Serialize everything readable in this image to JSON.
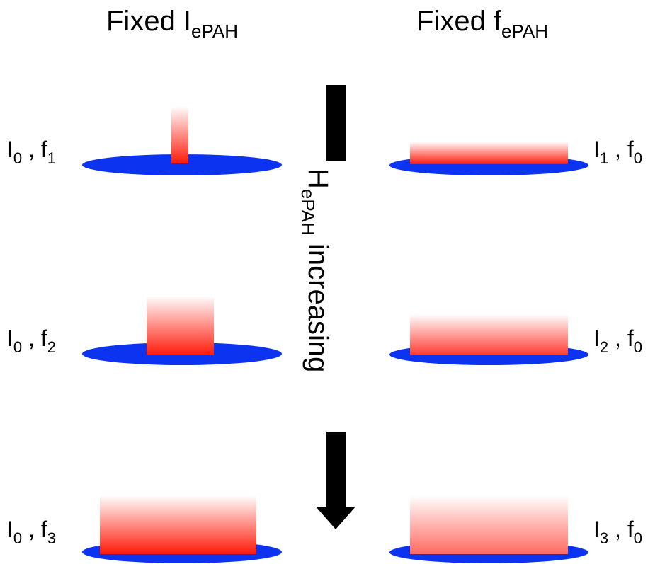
{
  "titles": {
    "left": {
      "main": "Fixed I",
      "sub": "ePAH"
    },
    "right": {
      "main": "Fixed f",
      "sub": "ePAH"
    }
  },
  "axis": {
    "main": "H",
    "sub": "ePAH",
    "rest": " increasing"
  },
  "left_rows": [
    {
      "i": "I",
      "i_sub": "0",
      "sep": " , ",
      "f": "f",
      "f_sub": "1"
    },
    {
      "i": "I",
      "i_sub": "0",
      "sep": " , ",
      "f": "f",
      "f_sub": "2"
    },
    {
      "i": "I",
      "i_sub": "0",
      "sep": " , ",
      "f": "f",
      "f_sub": "3"
    }
  ],
  "right_rows": [
    {
      "i": "I",
      "i_sub": "1",
      "sep": " , ",
      "f": "f",
      "f_sub": "0"
    },
    {
      "i": "I",
      "i_sub": "2",
      "sep": " , ",
      "f": "f",
      "f_sub": "0"
    },
    {
      "i": "I",
      "i_sub": "3",
      "sep": " , ",
      "f": "f",
      "f_sub": "0"
    }
  ],
  "colors": {
    "disk": "#0c33f0",
    "bar": "#ff1a0a",
    "arrow": "#000000"
  }
}
